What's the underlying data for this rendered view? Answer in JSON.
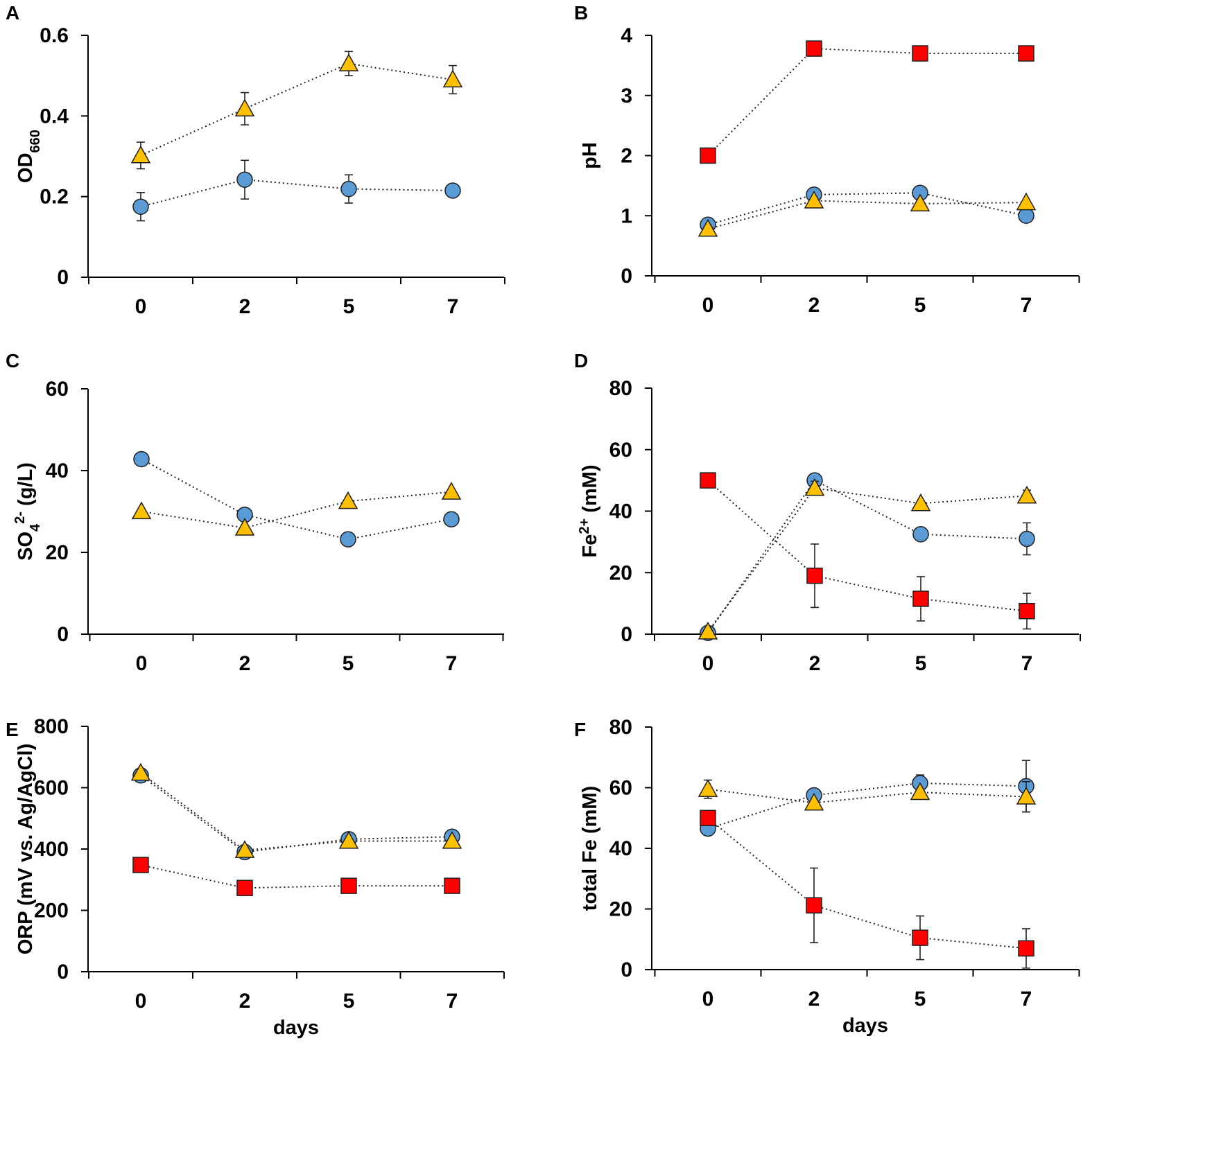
{
  "colors": {
    "circle": "#5b9bd5",
    "triangle": "#ffc000",
    "square": "#ff0000",
    "axis": "#000000"
  },
  "chart_data": [
    {
      "type": "line",
      "panel": "A",
      "ylabel_main": "OD",
      "ylabel_sub": "660",
      "ylabel_sup": "",
      "xlabel": "",
      "categories": [
        "0",
        "2",
        "5",
        "7"
      ],
      "ylim": [
        0,
        0.6
      ],
      "yticks": [
        0,
        0.2,
        0.4,
        0.6
      ],
      "ytick_labels": [
        "0",
        "0.2",
        "0.4",
        "0.6"
      ],
      "series": [
        {
          "marker": "circle",
          "values": [
            0.175,
            0.242,
            0.219,
            0.215
          ],
          "errors": [
            0.035,
            0.048,
            0.035,
            0.01
          ]
        },
        {
          "marker": "triangle",
          "values": [
            0.302,
            0.418,
            0.53,
            0.49
          ],
          "errors": [
            0.033,
            0.04,
            0.03,
            0.035
          ]
        }
      ]
    },
    {
      "type": "line",
      "panel": "B",
      "ylabel_main": "pH",
      "ylabel_sub": "",
      "ylabel_sup": "",
      "xlabel": "",
      "categories": [
        "0",
        "2",
        "5",
        "7"
      ],
      "ylim": [
        0,
        4
      ],
      "yticks": [
        0,
        1,
        2,
        3,
        4
      ],
      "ytick_labels": [
        "0",
        "1",
        "2",
        "3",
        "4"
      ],
      "series": [
        {
          "marker": "square",
          "values": [
            2.0,
            3.78,
            3.7,
            3.7
          ],
          "errors": [
            0,
            0,
            0,
            0
          ]
        },
        {
          "marker": "circle",
          "values": [
            0.85,
            1.35,
            1.38,
            1.0
          ],
          "errors": [
            0,
            0,
            0,
            0
          ]
        },
        {
          "marker": "triangle",
          "values": [
            0.78,
            1.25,
            1.2,
            1.22
          ],
          "errors": [
            0,
            0,
            0,
            0
          ]
        }
      ]
    },
    {
      "type": "line",
      "panel": "C",
      "ylabel_main": "SO",
      "ylabel_sub": "4",
      "ylabel_sup": "2-",
      "ylabel_rest": " (g/L)",
      "xlabel": "",
      "categories": [
        "0",
        "2",
        "5",
        "7"
      ],
      "ylim": [
        0,
        60
      ],
      "yticks": [
        0,
        20,
        40,
        60
      ],
      "ytick_labels": [
        "0",
        "20",
        "40",
        "60"
      ],
      "series": [
        {
          "marker": "circle",
          "values": [
            42.8,
            29.2,
            23.2,
            28.1
          ],
          "errors": [
            0,
            0,
            0,
            0
          ]
        },
        {
          "marker": "triangle",
          "values": [
            30.0,
            26.0,
            32.5,
            34.8
          ],
          "errors": [
            0,
            0,
            0,
            0
          ]
        }
      ]
    },
    {
      "type": "line",
      "panel": "D",
      "ylabel_main": "Fe",
      "ylabel_sub": "",
      "ylabel_sup": "2+",
      "ylabel_rest": " (mM)",
      "xlabel": "",
      "categories": [
        "0",
        "2",
        "5",
        "7"
      ],
      "ylim": [
        0,
        80
      ],
      "yticks": [
        0,
        20,
        40,
        60,
        80
      ],
      "ytick_labels": [
        "0",
        "20",
        "40",
        "60",
        "80"
      ],
      "series": [
        {
          "marker": "square",
          "values": [
            50,
            19,
            11.5,
            7.5
          ],
          "errors": [
            0,
            10.3,
            7.2,
            5.8
          ]
        },
        {
          "marker": "circle",
          "values": [
            0.4,
            50,
            32.5,
            31.0
          ],
          "errors": [
            0,
            0,
            0,
            5.2
          ]
        },
        {
          "marker": "triangle",
          "values": [
            0.8,
            47.5,
            42.5,
            45.0
          ],
          "errors": [
            0,
            2.2,
            0,
            1.8
          ]
        }
      ]
    },
    {
      "type": "line",
      "panel": "E",
      "ylabel_main": "ORP (mV vs. Ag/AgCl)",
      "ylabel_sub": "",
      "ylabel_sup": "",
      "xlabel": "days",
      "categories": [
        "0",
        "2",
        "5",
        "7"
      ],
      "ylim": [
        0,
        800
      ],
      "yticks": [
        0,
        200,
        400,
        600,
        800
      ],
      "ytick_labels": [
        "0",
        "200",
        "400",
        "600",
        "800"
      ],
      "series": [
        {
          "marker": "circle",
          "values": [
            640,
            390,
            432,
            440
          ],
          "errors": [
            0,
            0,
            0,
            0
          ]
        },
        {
          "marker": "triangle",
          "values": [
            648,
            396,
            426,
            426
          ],
          "errors": [
            0,
            0,
            0,
            0
          ]
        },
        {
          "marker": "square",
          "values": [
            348,
            273,
            280,
            280
          ],
          "errors": [
            0,
            0,
            0,
            0
          ]
        }
      ]
    },
    {
      "type": "line",
      "panel": "F",
      "ylabel_main": "total Fe (mM)",
      "ylabel_sub": "",
      "ylabel_sup": "",
      "xlabel": "days",
      "categories": [
        "0",
        "2",
        "5",
        "7"
      ],
      "ylim": [
        0,
        80
      ],
      "yticks": [
        0,
        20,
        40,
        60,
        80
      ],
      "ytick_labels": [
        "0",
        "20",
        "40",
        "60",
        "80"
      ],
      "series": [
        {
          "marker": "circle",
          "values": [
            46.5,
            57.5,
            61.5,
            60.5
          ],
          "errors": [
            0,
            0,
            2.7,
            8.5
          ]
        },
        {
          "marker": "triangle",
          "values": [
            59.5,
            55.0,
            58.5,
            57.0
          ],
          "errors": [
            3.0,
            0,
            0,
            5.0
          ]
        },
        {
          "marker": "square",
          "values": [
            50,
            21.2,
            10.5,
            7.0
          ],
          "errors": [
            0,
            12.3,
            7.2,
            6.5
          ]
        }
      ]
    }
  ]
}
